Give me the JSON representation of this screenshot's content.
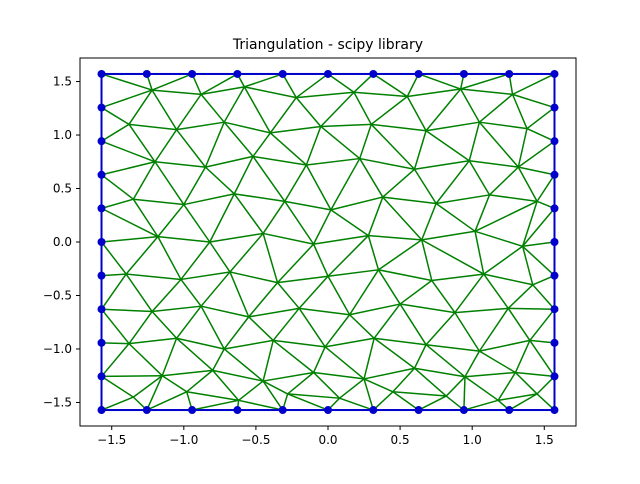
{
  "chart_data": {
    "type": "scatter",
    "title": "Triangulation - scipy library",
    "xlabel": "",
    "ylabel": "",
    "xlim": [
      -1.72,
      1.72
    ],
    "ylim": [
      -1.72,
      1.72
    ],
    "grid": false,
    "x_ticks": [
      -1.5,
      -1.0,
      -0.5,
      0.0,
      0.5,
      1.0,
      1.5
    ],
    "x_tick_labels": [
      "−1.5",
      "−1.0",
      "−0.5",
      "0.0",
      "0.5",
      "1.0",
      "1.5"
    ],
    "y_ticks": [
      -1.5,
      -1.0,
      -0.5,
      0.0,
      0.5,
      1.0,
      1.5
    ],
    "y_tick_labels": [
      "−1.5",
      "−1.0",
      "−0.5",
      "0.0",
      "0.5",
      "1.0",
      "1.5"
    ],
    "boundary_points": {
      "color": "#0000cc",
      "x": [
        -1.5708,
        -1.2566,
        -0.9425,
        -0.6283,
        -0.3142,
        0.0,
        0.3142,
        0.6283,
        0.9425,
        1.2566,
        1.5708,
        1.5708,
        1.5708,
        1.5708,
        1.5708,
        1.5708,
        1.5708,
        1.5708,
        1.5708,
        1.5708,
        1.5708,
        1.2566,
        0.9425,
        0.6283,
        0.3142,
        0.0,
        -0.3142,
        -0.6283,
        -0.9425,
        -1.2566,
        -1.5708,
        -1.5708,
        -1.5708,
        -1.5708,
        -1.5708,
        -1.5708,
        -1.5708,
        -1.5708,
        -1.5708,
        -1.5708
      ],
      "y": [
        1.5708,
        1.5708,
        1.5708,
        1.5708,
        1.5708,
        1.5708,
        1.5708,
        1.5708,
        1.5708,
        1.5708,
        1.5708,
        1.2566,
        0.9425,
        0.6283,
        0.3142,
        0.0,
        -0.3142,
        -0.6283,
        -0.9425,
        -1.2566,
        -1.5708,
        -1.5708,
        -1.5708,
        -1.5708,
        -1.5708,
        -1.5708,
        -1.5708,
        -1.5708,
        -1.5708,
        -1.5708,
        -1.5708,
        -1.2566,
        -0.9425,
        -0.6283,
        -0.3142,
        0.0,
        0.3142,
        0.6283,
        0.9425,
        1.2566
      ]
    },
    "interior_points": {
      "x": [
        -1.22,
        -0.88,
        -0.58,
        -0.22,
        0.18,
        0.55,
        0.92,
        1.28,
        -1.38,
        -1.05,
        -0.72,
        -0.4,
        -0.05,
        0.3,
        0.68,
        1.05,
        1.38,
        -1.2,
        -0.85,
        -0.52,
        -0.15,
        0.22,
        0.6,
        0.98,
        1.32,
        -1.35,
        -1.0,
        -0.65,
        -0.3,
        0.02,
        0.38,
        0.75,
        1.12,
        1.45,
        -1.18,
        -0.82,
        -0.45,
        -0.1,
        0.28,
        0.65,
        1.02,
        1.35,
        -1.4,
        -1.02,
        -0.68,
        -0.35,
        0.0,
        0.35,
        0.72,
        1.08,
        1.42,
        -1.22,
        -0.88,
        -0.55,
        -0.2,
        0.15,
        0.5,
        0.88,
        1.25,
        -1.38,
        -1.05,
        -0.72,
        -0.38,
        -0.02,
        0.32,
        0.68,
        1.05,
        1.4,
        -1.15,
        -0.8,
        -0.45,
        -0.1,
        0.25,
        0.6,
        0.95,
        1.3,
        -1.35,
        -0.98,
        -0.62,
        -0.28,
        0.08,
        0.45,
        0.82,
        1.18,
        1.45
      ],
      "y": [
        1.42,
        1.38,
        1.45,
        1.35,
        1.4,
        1.36,
        1.43,
        1.38,
        1.1,
        1.05,
        1.12,
        1.02,
        1.08,
        1.1,
        1.04,
        1.12,
        1.06,
        0.75,
        0.7,
        0.8,
        0.72,
        0.78,
        0.68,
        0.76,
        0.7,
        0.4,
        0.35,
        0.45,
        0.38,
        0.3,
        0.42,
        0.36,
        0.44,
        0.38,
        0.05,
        0.0,
        0.08,
        -0.02,
        0.06,
        0.02,
        0.1,
        -0.04,
        -0.3,
        -0.35,
        -0.28,
        -0.38,
        -0.32,
        -0.26,
        -0.36,
        -0.3,
        -0.4,
        -0.65,
        -0.6,
        -0.7,
        -0.62,
        -0.68,
        -0.58,
        -0.66,
        -0.62,
        -0.95,
        -0.9,
        -1.0,
        -0.92,
        -0.98,
        -0.9,
        -0.96,
        -1.02,
        -0.92,
        -1.25,
        -1.2,
        -1.3,
        -1.22,
        -1.28,
        -1.18,
        -1.26,
        -1.22,
        -1.45,
        -1.4,
        -1.48,
        -1.42,
        -1.46,
        -1.4,
        -1.44,
        -1.48,
        -1.42
      ]
    },
    "edge_color": "#008000",
    "boundary_color": "#0000cc"
  }
}
